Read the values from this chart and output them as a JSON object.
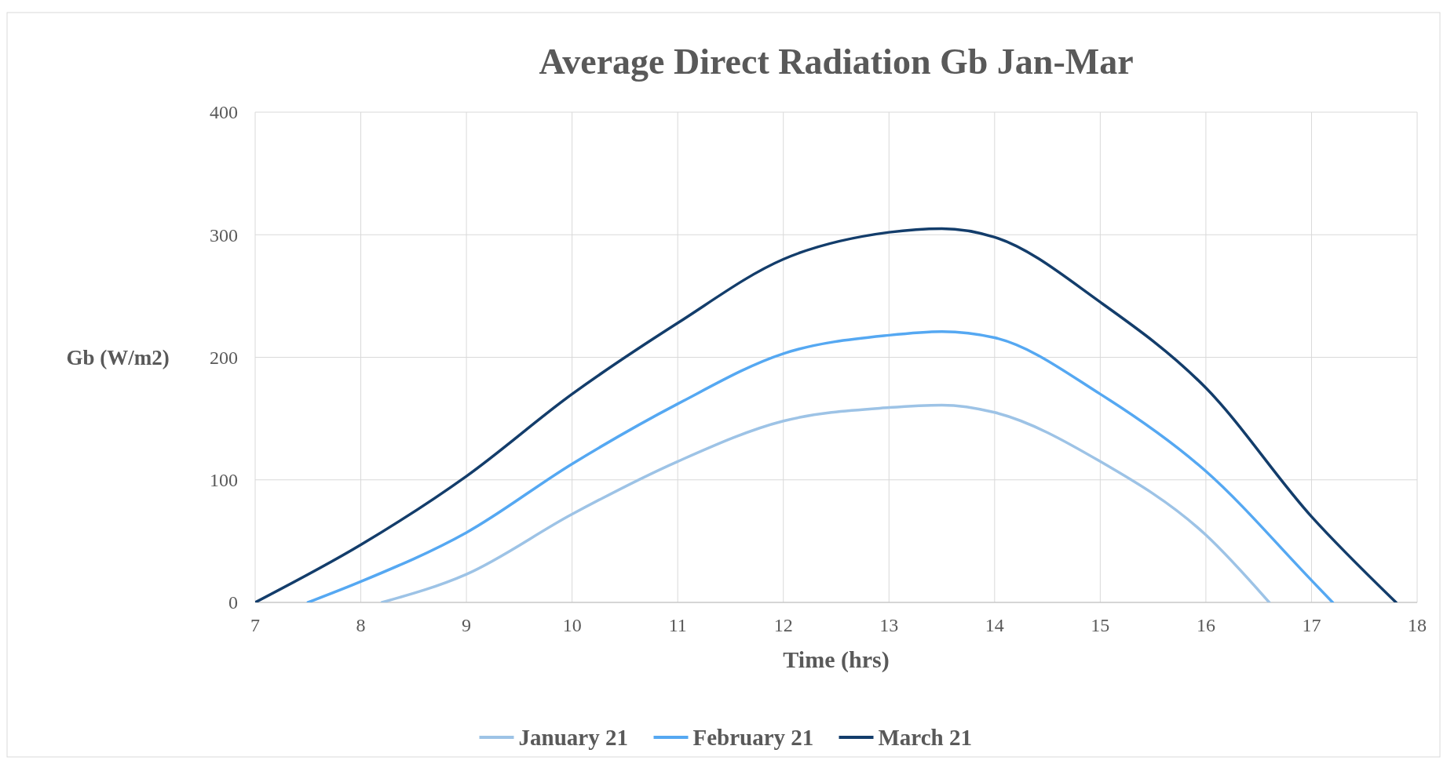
{
  "chart_data": {
    "type": "line",
    "title": "Average Direct Radiation Gb Jan-Mar",
    "xlabel": "Time (hrs)",
    "ylabel": "Gb (W/m2)",
    "xlim": [
      7,
      18
    ],
    "xticks": [
      7,
      8,
      9,
      10,
      11,
      12,
      13,
      14,
      15,
      16,
      17,
      18
    ],
    "ylim": [
      0,
      400
    ],
    "yticks": [
      0,
      100,
      200,
      300,
      400
    ],
    "grid": true,
    "legend": "bottom",
    "line_style": "solid",
    "marker": "none",
    "series": [
      {
        "name": "January 21",
        "color": "#9dc3e6",
        "x": [
          8.2,
          9,
          10,
          11,
          12,
          13,
          13.5,
          14,
          15,
          16,
          16.6
        ],
        "values": [
          0,
          23,
          72,
          115,
          148,
          159,
          161,
          155,
          115,
          55,
          0
        ]
      },
      {
        "name": "February 21",
        "color": "#55a8f2",
        "x": [
          7.5,
          8,
          9,
          10,
          11,
          12,
          13,
          13.5,
          14,
          15,
          16,
          17,
          17.2
        ],
        "values": [
          0,
          17,
          57,
          113,
          162,
          203,
          218,
          221,
          216,
          170,
          107,
          18,
          0
        ]
      },
      {
        "name": "March 21",
        "color": "#133d6b",
        "x": [
          7,
          8,
          9,
          10,
          11,
          12,
          13,
          13.5,
          14,
          15,
          16,
          17,
          17.8
        ],
        "values": [
          0,
          47,
          103,
          170,
          228,
          280,
          302,
          305,
          298,
          245,
          175,
          70,
          0
        ]
      }
    ]
  }
}
